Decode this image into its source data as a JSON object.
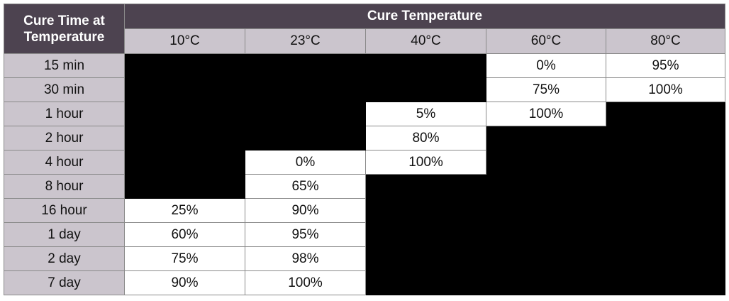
{
  "table": {
    "corner": [
      "Cure Time at",
      "Temperature"
    ],
    "group_header": "Cure Temperature",
    "columns": [
      "10°C",
      "23°C",
      "40°C",
      "60°C",
      "80°C"
    ],
    "rows": [
      {
        "label": "15 min",
        "cells": [
          null,
          null,
          null,
          "0%",
          "95%"
        ]
      },
      {
        "label": "30 min",
        "cells": [
          null,
          null,
          null,
          "75%",
          "100%"
        ]
      },
      {
        "label": "1 hour",
        "cells": [
          null,
          null,
          "5%",
          "100%",
          null
        ]
      },
      {
        "label": "2 hour",
        "cells": [
          null,
          null,
          "80%",
          null,
          null
        ]
      },
      {
        "label": "4 hour",
        "cells": [
          null,
          "0%",
          "100%",
          null,
          null
        ]
      },
      {
        "label": "8 hour",
        "cells": [
          null,
          "65%",
          null,
          null,
          null
        ]
      },
      {
        "label": "16 hour",
        "cells": [
          "25%",
          "90%",
          null,
          null,
          null
        ]
      },
      {
        "label": "1 day",
        "cells": [
          "60%",
          "95%",
          null,
          null,
          null
        ]
      },
      {
        "label": "2 day",
        "cells": [
          "75%",
          "98%",
          null,
          null,
          null
        ]
      },
      {
        "label": "7 day",
        "cells": [
          "90%",
          "100%",
          null,
          null,
          null
        ]
      }
    ]
  }
}
